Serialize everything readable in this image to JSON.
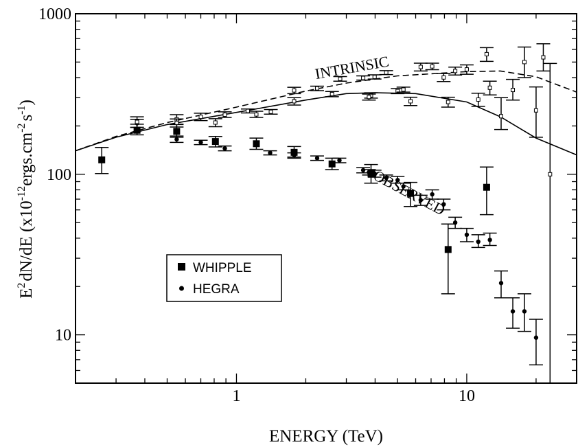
{
  "chart_data": {
    "type": "scatter",
    "xlabel": "ENERGY (TeV)",
    "ylabel_parts": {
      "e": "E",
      "exp2": "2",
      "main": "dN/dE (x10",
      "exp12": "-12",
      "units": "ergs.cm",
      "exp_cm": "-2",
      "s": "s",
      "exp_s": "-1",
      "close": ")"
    },
    "xscale": "log",
    "yscale": "log",
    "xlim": [
      0.2,
      30
    ],
    "ylim": [
      5,
      1000
    ],
    "x_ticklabels": [
      "1",
      "10"
    ],
    "y_ticklabels": [
      "10",
      "100",
      "1000"
    ],
    "annotations": [
      {
        "text": "INTRINSIC",
        "x": 3.2,
        "y": 430,
        "rotation": -10
      },
      {
        "text": "OBSERVED",
        "x": 5.5,
        "y": 72,
        "rotation": 28
      }
    ],
    "legend": {
      "position": "lower-left",
      "entries": [
        {
          "label": "WHIPPLE",
          "marker": "square-filled"
        },
        {
          "label": "HEGRA",
          "marker": "circle-filled"
        }
      ]
    },
    "series": [
      {
        "name": "WHIPPLE",
        "marker": "square-filled",
        "points": [
          {
            "x": 0.26,
            "y": 123,
            "ylo": 101,
            "yhi": 147
          },
          {
            "x": 0.37,
            "y": 188,
            "ylo": 176,
            "yhi": 205
          },
          {
            "x": 0.55,
            "y": 185,
            "ylo": 170,
            "yhi": 204
          },
          {
            "x": 0.81,
            "y": 160,
            "ylo": 148,
            "yhi": 172
          },
          {
            "x": 1.22,
            "y": 155,
            "ylo": 143,
            "yhi": 168
          },
          {
            "x": 1.78,
            "y": 137,
            "ylo": 126,
            "yhi": 149
          },
          {
            "x": 2.6,
            "y": 116,
            "ylo": 107,
            "yhi": 126
          },
          {
            "x": 3.84,
            "y": 101,
            "ylo": 88,
            "yhi": 115
          },
          {
            "x": 5.7,
            "y": 76,
            "ylo": 63,
            "yhi": 89
          },
          {
            "x": 8.3,
            "y": 34,
            "ylo": 18,
            "yhi": 49
          },
          {
            "x": 12.2,
            "y": 83,
            "ylo": 56,
            "yhi": 111
          }
        ]
      },
      {
        "name": "HEGRA",
        "marker": "circle-filled",
        "points": [
          {
            "x": 0.37,
            "y": 208,
            "ylo": 196,
            "yhi": 220
          },
          {
            "x": 0.55,
            "y": 165,
            "ylo": 158,
            "yhi": 173
          },
          {
            "x": 0.7,
            "y": 158,
            "ylo": 153,
            "yhi": 163
          },
          {
            "x": 0.89,
            "y": 145,
            "ylo": 140,
            "yhi": 150
          },
          {
            "x": 1.4,
            "y": 136,
            "ylo": 132,
            "yhi": 140
          },
          {
            "x": 1.78,
            "y": 132,
            "ylo": 128,
            "yhi": 136
          },
          {
            "x": 2.24,
            "y": 126,
            "ylo": 122,
            "yhi": 130
          },
          {
            "x": 2.8,
            "y": 122,
            "ylo": 118,
            "yhi": 126
          },
          {
            "x": 3.55,
            "y": 106,
            "ylo": 102,
            "yhi": 110
          },
          {
            "x": 3.76,
            "y": 103,
            "ylo": 99,
            "yhi": 107
          },
          {
            "x": 3.98,
            "y": 101,
            "ylo": 96,
            "yhi": 106
          },
          {
            "x": 4.47,
            "y": 95,
            "ylo": 91,
            "yhi": 99
          },
          {
            "x": 5.01,
            "y": 92,
            "ylo": 88,
            "yhi": 97
          },
          {
            "x": 5.31,
            "y": 84,
            "ylo": 80,
            "yhi": 88
          },
          {
            "x": 6.31,
            "y": 69,
            "ylo": 64,
            "yhi": 74
          },
          {
            "x": 7.08,
            "y": 75,
            "ylo": 70,
            "yhi": 80
          },
          {
            "x": 7.94,
            "y": 65,
            "ylo": 60,
            "yhi": 70
          },
          {
            "x": 8.91,
            "y": 50,
            "ylo": 46,
            "yhi": 54
          },
          {
            "x": 10.0,
            "y": 42,
            "ylo": 38,
            "yhi": 46
          },
          {
            "x": 11.22,
            "y": 38,
            "ylo": 35,
            "yhi": 42
          },
          {
            "x": 12.6,
            "y": 39,
            "ylo": 36,
            "yhi": 43
          },
          {
            "x": 14.1,
            "y": 21,
            "ylo": 17,
            "yhi": 25
          },
          {
            "x": 15.85,
            "y": 14,
            "ylo": 11,
            "yhi": 17
          },
          {
            "x": 17.8,
            "y": 14,
            "ylo": 10.5,
            "yhi": 18
          },
          {
            "x": 20.0,
            "y": 9.6,
            "ylo": 6.5,
            "yhi": 12.5
          }
        ]
      },
      {
        "name": "INTRINSIC (WHIPPLE)",
        "marker": "square-open",
        "points": [
          {
            "x": 0.55,
            "y": 220,
            "ylo": 205,
            "yhi": 235
          },
          {
            "x": 0.81,
            "y": 210,
            "ylo": 198,
            "yhi": 222
          },
          {
            "x": 1.22,
            "y": 236,
            "ylo": 226,
            "yhi": 247
          },
          {
            "x": 1.78,
            "y": 285,
            "ylo": 270,
            "yhi": 300
          },
          {
            "x": 2.6,
            "y": 316,
            "ylo": 304,
            "yhi": 328
          },
          {
            "x": 3.84,
            "y": 310,
            "ylo": 298,
            "yhi": 322
          },
          {
            "x": 5.7,
            "y": 285,
            "ylo": 268,
            "yhi": 302
          },
          {
            "x": 8.3,
            "y": 282,
            "ylo": 262,
            "yhi": 302
          },
          {
            "x": 12.2,
            "y": 560,
            "ylo": 505,
            "yhi": 615
          }
        ]
      },
      {
        "name": "INTRINSIC (HEGRA)",
        "marker": "square-open",
        "points": [
          {
            "x": 0.37,
            "y": 212,
            "ylo": 196,
            "yhi": 228
          },
          {
            "x": 0.55,
            "y": 209,
            "ylo": 197,
            "yhi": 221
          },
          {
            "x": 0.7,
            "y": 228,
            "ylo": 216,
            "yhi": 240
          },
          {
            "x": 0.89,
            "y": 235,
            "ylo": 226,
            "yhi": 245
          },
          {
            "x": 1.12,
            "y": 248,
            "ylo": 241,
            "yhi": 255
          },
          {
            "x": 1.41,
            "y": 245,
            "ylo": 237,
            "yhi": 253
          },
          {
            "x": 1.78,
            "y": 333,
            "ylo": 318,
            "yhi": 348
          },
          {
            "x": 2.24,
            "y": 343,
            "ylo": 332,
            "yhi": 354
          },
          {
            "x": 2.82,
            "y": 393,
            "ylo": 380,
            "yhi": 406
          },
          {
            "x": 3.55,
            "y": 398,
            "ylo": 386,
            "yhi": 410
          },
          {
            "x": 3.76,
            "y": 303,
            "ylo": 290,
            "yhi": 316
          },
          {
            "x": 3.98,
            "y": 404,
            "ylo": 392,
            "yhi": 416
          },
          {
            "x": 4.47,
            "y": 430,
            "ylo": 418,
            "yhi": 442
          },
          {
            "x": 5.01,
            "y": 330,
            "ylo": 318,
            "yhi": 342
          },
          {
            "x": 5.31,
            "y": 337,
            "ylo": 325,
            "yhi": 349
          },
          {
            "x": 6.31,
            "y": 466,
            "ylo": 440,
            "yhi": 492
          },
          {
            "x": 7.08,
            "y": 470,
            "ylo": 448,
            "yhi": 492
          },
          {
            "x": 7.94,
            "y": 401,
            "ylo": 378,
            "yhi": 424
          },
          {
            "x": 8.91,
            "y": 440,
            "ylo": 415,
            "yhi": 465
          },
          {
            "x": 10.0,
            "y": 450,
            "ylo": 420,
            "yhi": 480
          },
          {
            "x": 11.22,
            "y": 292,
            "ylo": 265,
            "yhi": 320
          },
          {
            "x": 12.6,
            "y": 346,
            "ylo": 312,
            "yhi": 380
          },
          {
            "x": 14.1,
            "y": 230,
            "ylo": 190,
            "yhi": 300
          },
          {
            "x": 15.85,
            "y": 335,
            "ylo": 290,
            "yhi": 390
          },
          {
            "x": 17.8,
            "y": 500,
            "ylo": 400,
            "yhi": 620
          },
          {
            "x": 20.0,
            "y": 250,
            "ylo": 170,
            "yhi": 350
          },
          {
            "x": 21.5,
            "y": 535,
            "ylo": 440,
            "yhi": 650
          },
          {
            "x": 23.0,
            "y": 100,
            "ylo": 5,
            "yhi": 490
          }
        ]
      },
      {
        "name": "INTRINSIC fit",
        "line_style": "dashed",
        "curve": [
          {
            "x": 0.2,
            "y": 140
          },
          {
            "x": 0.3,
            "y": 172
          },
          {
            "x": 0.5,
            "y": 210
          },
          {
            "x": 1.0,
            "y": 262
          },
          {
            "x": 2.0,
            "y": 330
          },
          {
            "x": 3.0,
            "y": 370
          },
          {
            "x": 5.0,
            "y": 410
          },
          {
            "x": 10.0,
            "y": 436
          },
          {
            "x": 14.0,
            "y": 440
          },
          {
            "x": 20.0,
            "y": 405
          },
          {
            "x": 30.0,
            "y": 325
          }
        ]
      },
      {
        "name": "OBSERVED fit",
        "line_style": "solid",
        "curve": [
          {
            "x": 0.2,
            "y": 140
          },
          {
            "x": 0.3,
            "y": 170
          },
          {
            "x": 0.5,
            "y": 204
          },
          {
            "x": 1.0,
            "y": 243
          },
          {
            "x": 2.0,
            "y": 290
          },
          {
            "x": 3.0,
            "y": 318
          },
          {
            "x": 4.0,
            "y": 322
          },
          {
            "x": 6.0,
            "y": 318
          },
          {
            "x": 10.0,
            "y": 282
          },
          {
            "x": 14.0,
            "y": 228
          },
          {
            "x": 20.0,
            "y": 168
          },
          {
            "x": 30.0,
            "y": 132
          }
        ]
      }
    ]
  }
}
